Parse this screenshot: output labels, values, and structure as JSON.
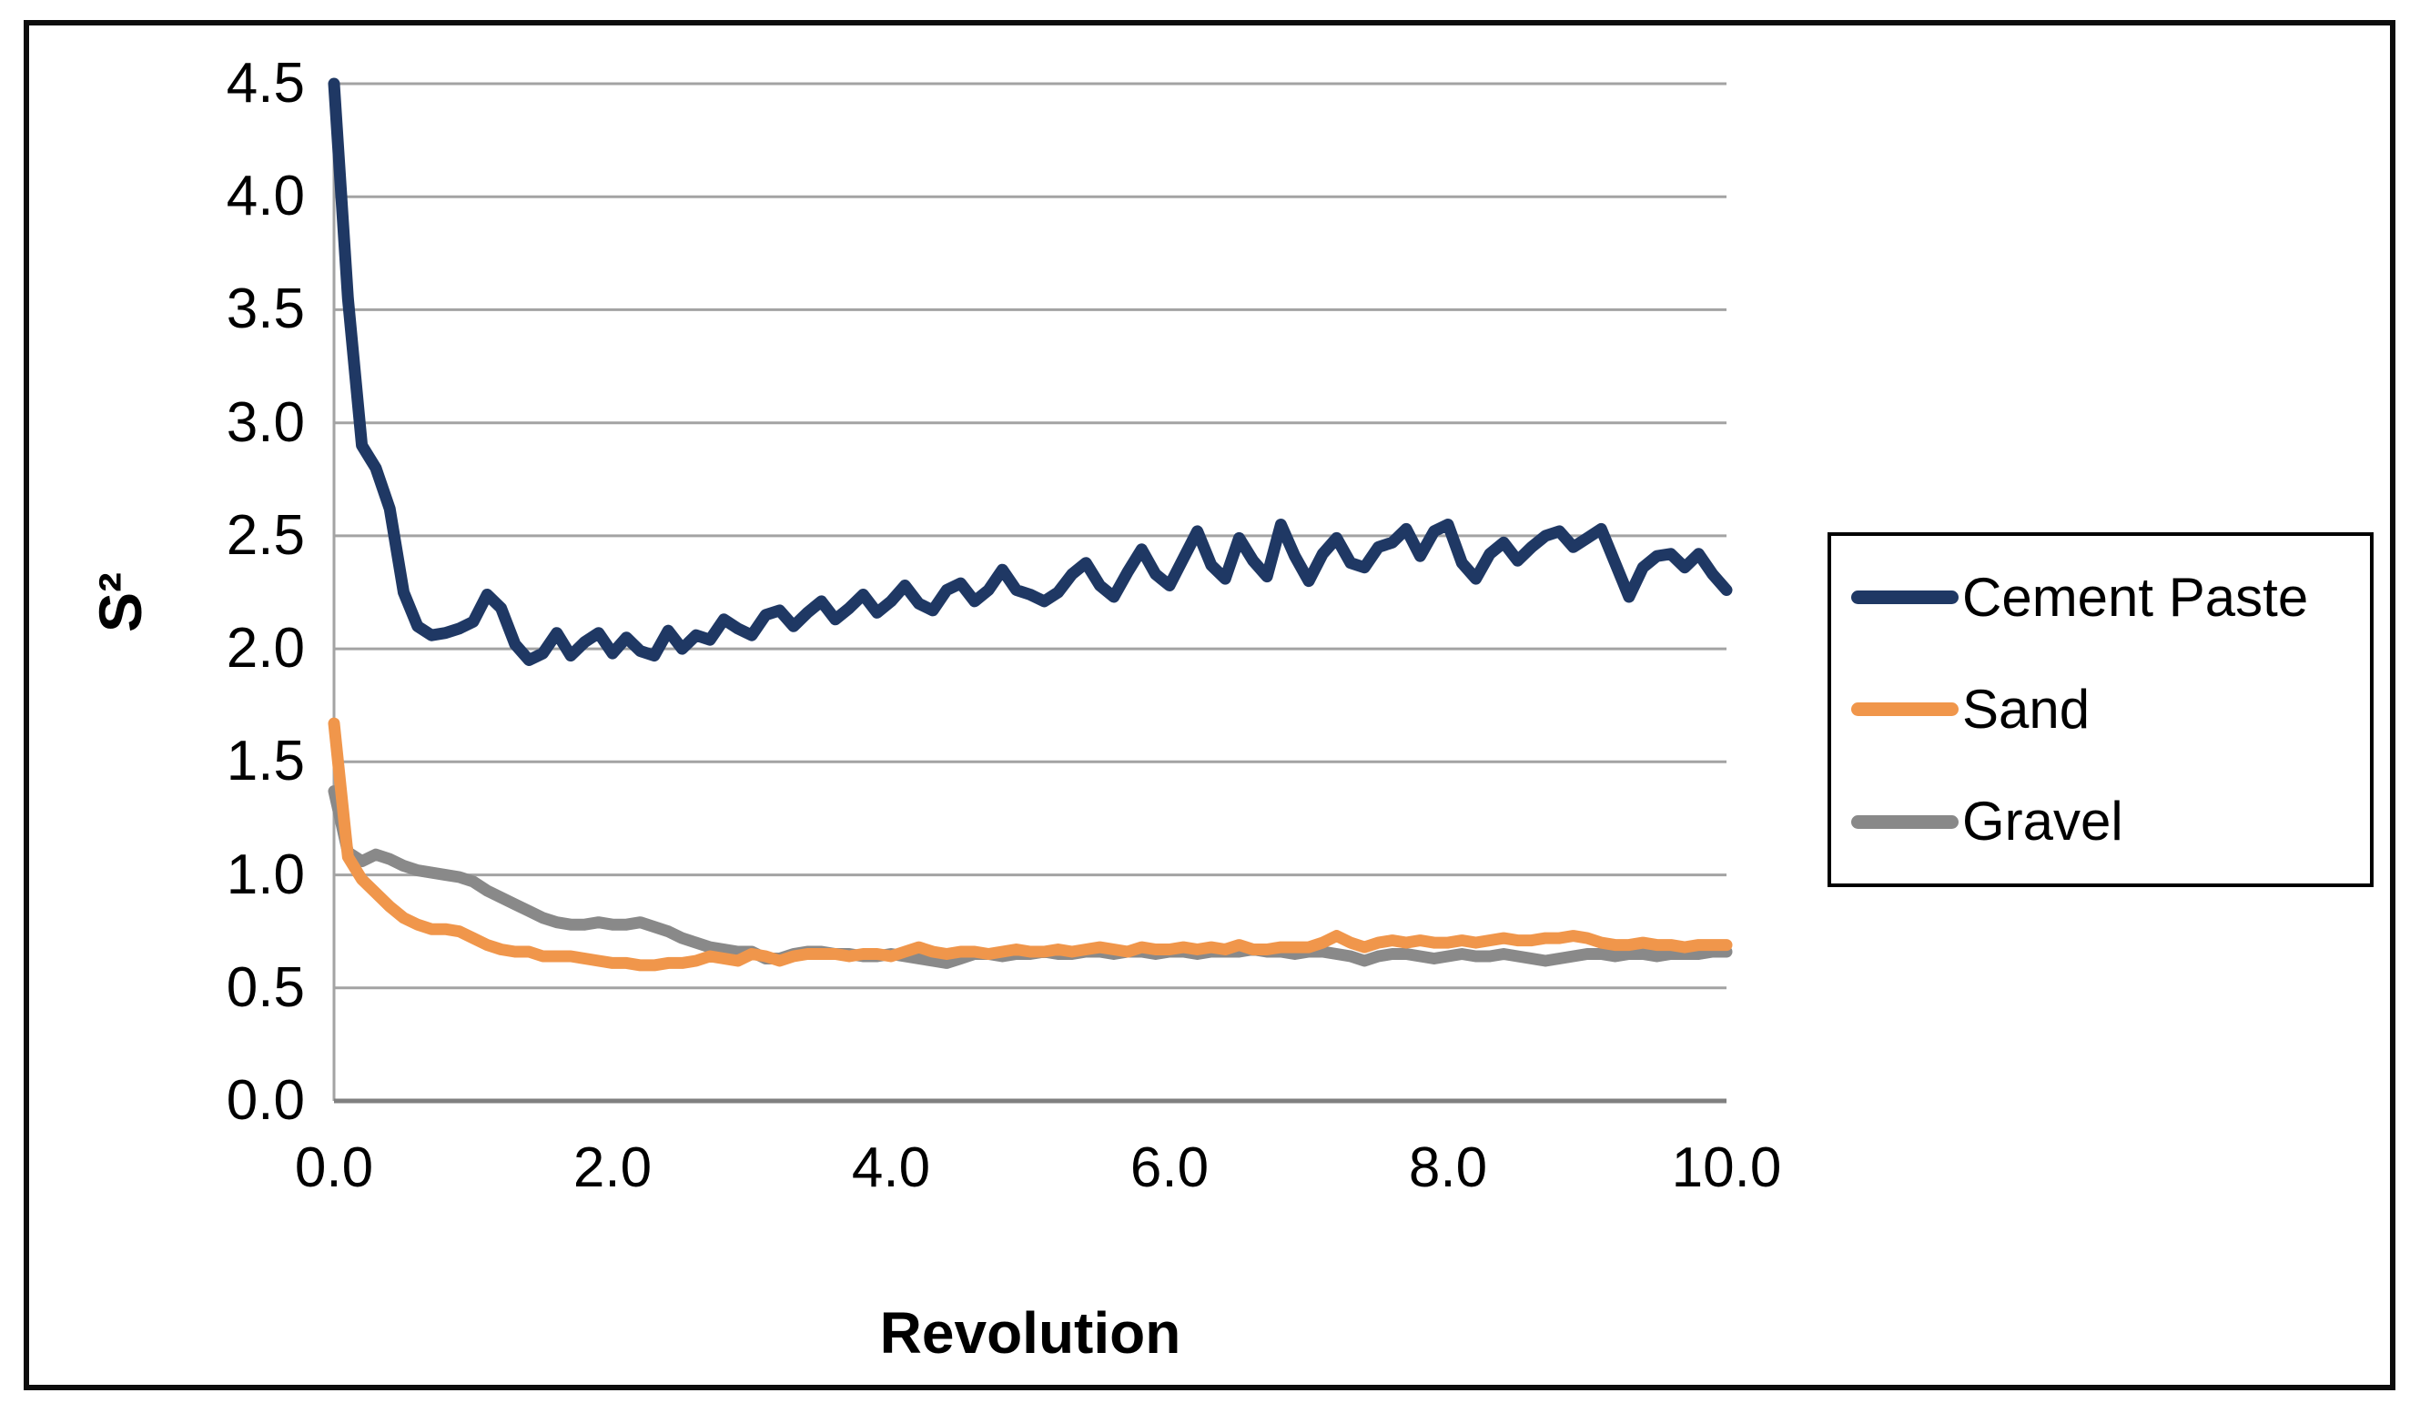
{
  "chart_data": {
    "type": "line",
    "title": "",
    "xlabel": "Revolution",
    "ylabel": "S²",
    "xlim": [
      0,
      10
    ],
    "ylim": [
      0,
      4.5
    ],
    "x_step": 0.1,
    "grid": "horizontal",
    "legend_position": "right",
    "x_ticks": [
      "0.0",
      "2.0",
      "4.0",
      "6.0",
      "8.0",
      "10.0"
    ],
    "x_tick_values": [
      0,
      2,
      4,
      6,
      8,
      10
    ],
    "y_ticks": [
      "0.0",
      "0.5",
      "1.0",
      "1.5",
      "2.0",
      "2.5",
      "3.0",
      "3.5",
      "4.0",
      "4.5"
    ],
    "y_tick_values": [
      0,
      0.5,
      1,
      1.5,
      2,
      2.5,
      3,
      3.5,
      4,
      4.5
    ],
    "colors": {
      "gridline": "#a3a3a3",
      "axis_left": "#a3a3a3",
      "axis_bottom": "#808080",
      "frame": "#0d0d0d"
    },
    "series": [
      {
        "name": "Cement Paste",
        "color": "#1f3864",
        "values": [
          4.5,
          3.55,
          2.9,
          2.8,
          2.62,
          2.25,
          2.1,
          2.06,
          2.07,
          2.09,
          2.12,
          2.24,
          2.18,
          2.02,
          1.95,
          1.98,
          2.07,
          1.97,
          2.03,
          2.07,
          1.98,
          2.05,
          1.99,
          1.97,
          2.08,
          2.0,
          2.06,
          2.04,
          2.13,
          2.09,
          2.06,
          2.15,
          2.17,
          2.1,
          2.16,
          2.21,
          2.13,
          2.18,
          2.24,
          2.16,
          2.21,
          2.28,
          2.2,
          2.17,
          2.26,
          2.29,
          2.21,
          2.26,
          2.35,
          2.26,
          2.24,
          2.21,
          2.25,
          2.33,
          2.38,
          2.28,
          2.23,
          2.34,
          2.44,
          2.33,
          2.28,
          2.4,
          2.52,
          2.37,
          2.31,
          2.49,
          2.39,
          2.32,
          2.55,
          2.41,
          2.3,
          2.42,
          2.49,
          2.38,
          2.36,
          2.45,
          2.47,
          2.53,
          2.41,
          2.52,
          2.55,
          2.38,
          2.31,
          2.42,
          2.47,
          2.39,
          2.45,
          2.5,
          2.52,
          2.45,
          2.49,
          2.53,
          2.38,
          2.23,
          2.36,
          2.41,
          2.42,
          2.36,
          2.42,
          2.33,
          2.26
        ]
      },
      {
        "name": "Sand",
        "color": "#f0964b",
        "values": [
          1.67,
          1.08,
          0.98,
          0.92,
          0.86,
          0.81,
          0.78,
          0.76,
          0.76,
          0.75,
          0.72,
          0.69,
          0.67,
          0.66,
          0.66,
          0.64,
          0.64,
          0.64,
          0.63,
          0.62,
          0.61,
          0.61,
          0.6,
          0.6,
          0.61,
          0.61,
          0.62,
          0.64,
          0.63,
          0.62,
          0.65,
          0.64,
          0.62,
          0.64,
          0.65,
          0.65,
          0.65,
          0.64,
          0.65,
          0.65,
          0.64,
          0.66,
          0.68,
          0.66,
          0.65,
          0.66,
          0.66,
          0.65,
          0.66,
          0.67,
          0.66,
          0.66,
          0.67,
          0.66,
          0.67,
          0.68,
          0.67,
          0.66,
          0.68,
          0.67,
          0.67,
          0.68,
          0.67,
          0.68,
          0.67,
          0.69,
          0.67,
          0.67,
          0.68,
          0.68,
          0.68,
          0.7,
          0.73,
          0.7,
          0.68,
          0.7,
          0.71,
          0.7,
          0.71,
          0.7,
          0.7,
          0.71,
          0.7,
          0.71,
          0.72,
          0.71,
          0.71,
          0.72,
          0.72,
          0.73,
          0.72,
          0.7,
          0.69,
          0.69,
          0.7,
          0.69,
          0.69,
          0.68,
          0.69,
          0.69,
          0.69
        ]
      },
      {
        "name": "Gravel",
        "color": "#898989",
        "values": [
          1.37,
          1.1,
          1.06,
          1.09,
          1.07,
          1.04,
          1.02,
          1.01,
          1.0,
          0.99,
          0.97,
          0.93,
          0.9,
          0.87,
          0.84,
          0.81,
          0.79,
          0.78,
          0.78,
          0.79,
          0.78,
          0.78,
          0.79,
          0.77,
          0.75,
          0.72,
          0.7,
          0.68,
          0.67,
          0.66,
          0.66,
          0.63,
          0.63,
          0.65,
          0.66,
          0.66,
          0.65,
          0.65,
          0.64,
          0.64,
          0.65,
          0.64,
          0.63,
          0.62,
          0.61,
          0.63,
          0.65,
          0.65,
          0.64,
          0.65,
          0.65,
          0.66,
          0.65,
          0.65,
          0.66,
          0.66,
          0.65,
          0.66,
          0.66,
          0.65,
          0.66,
          0.66,
          0.65,
          0.66,
          0.66,
          0.66,
          0.67,
          0.66,
          0.66,
          0.65,
          0.66,
          0.66,
          0.65,
          0.64,
          0.62,
          0.64,
          0.65,
          0.65,
          0.64,
          0.63,
          0.64,
          0.65,
          0.64,
          0.64,
          0.65,
          0.64,
          0.63,
          0.62,
          0.63,
          0.64,
          0.65,
          0.65,
          0.64,
          0.65,
          0.65,
          0.64,
          0.65,
          0.65,
          0.65,
          0.66,
          0.66
        ]
      }
    ]
  }
}
